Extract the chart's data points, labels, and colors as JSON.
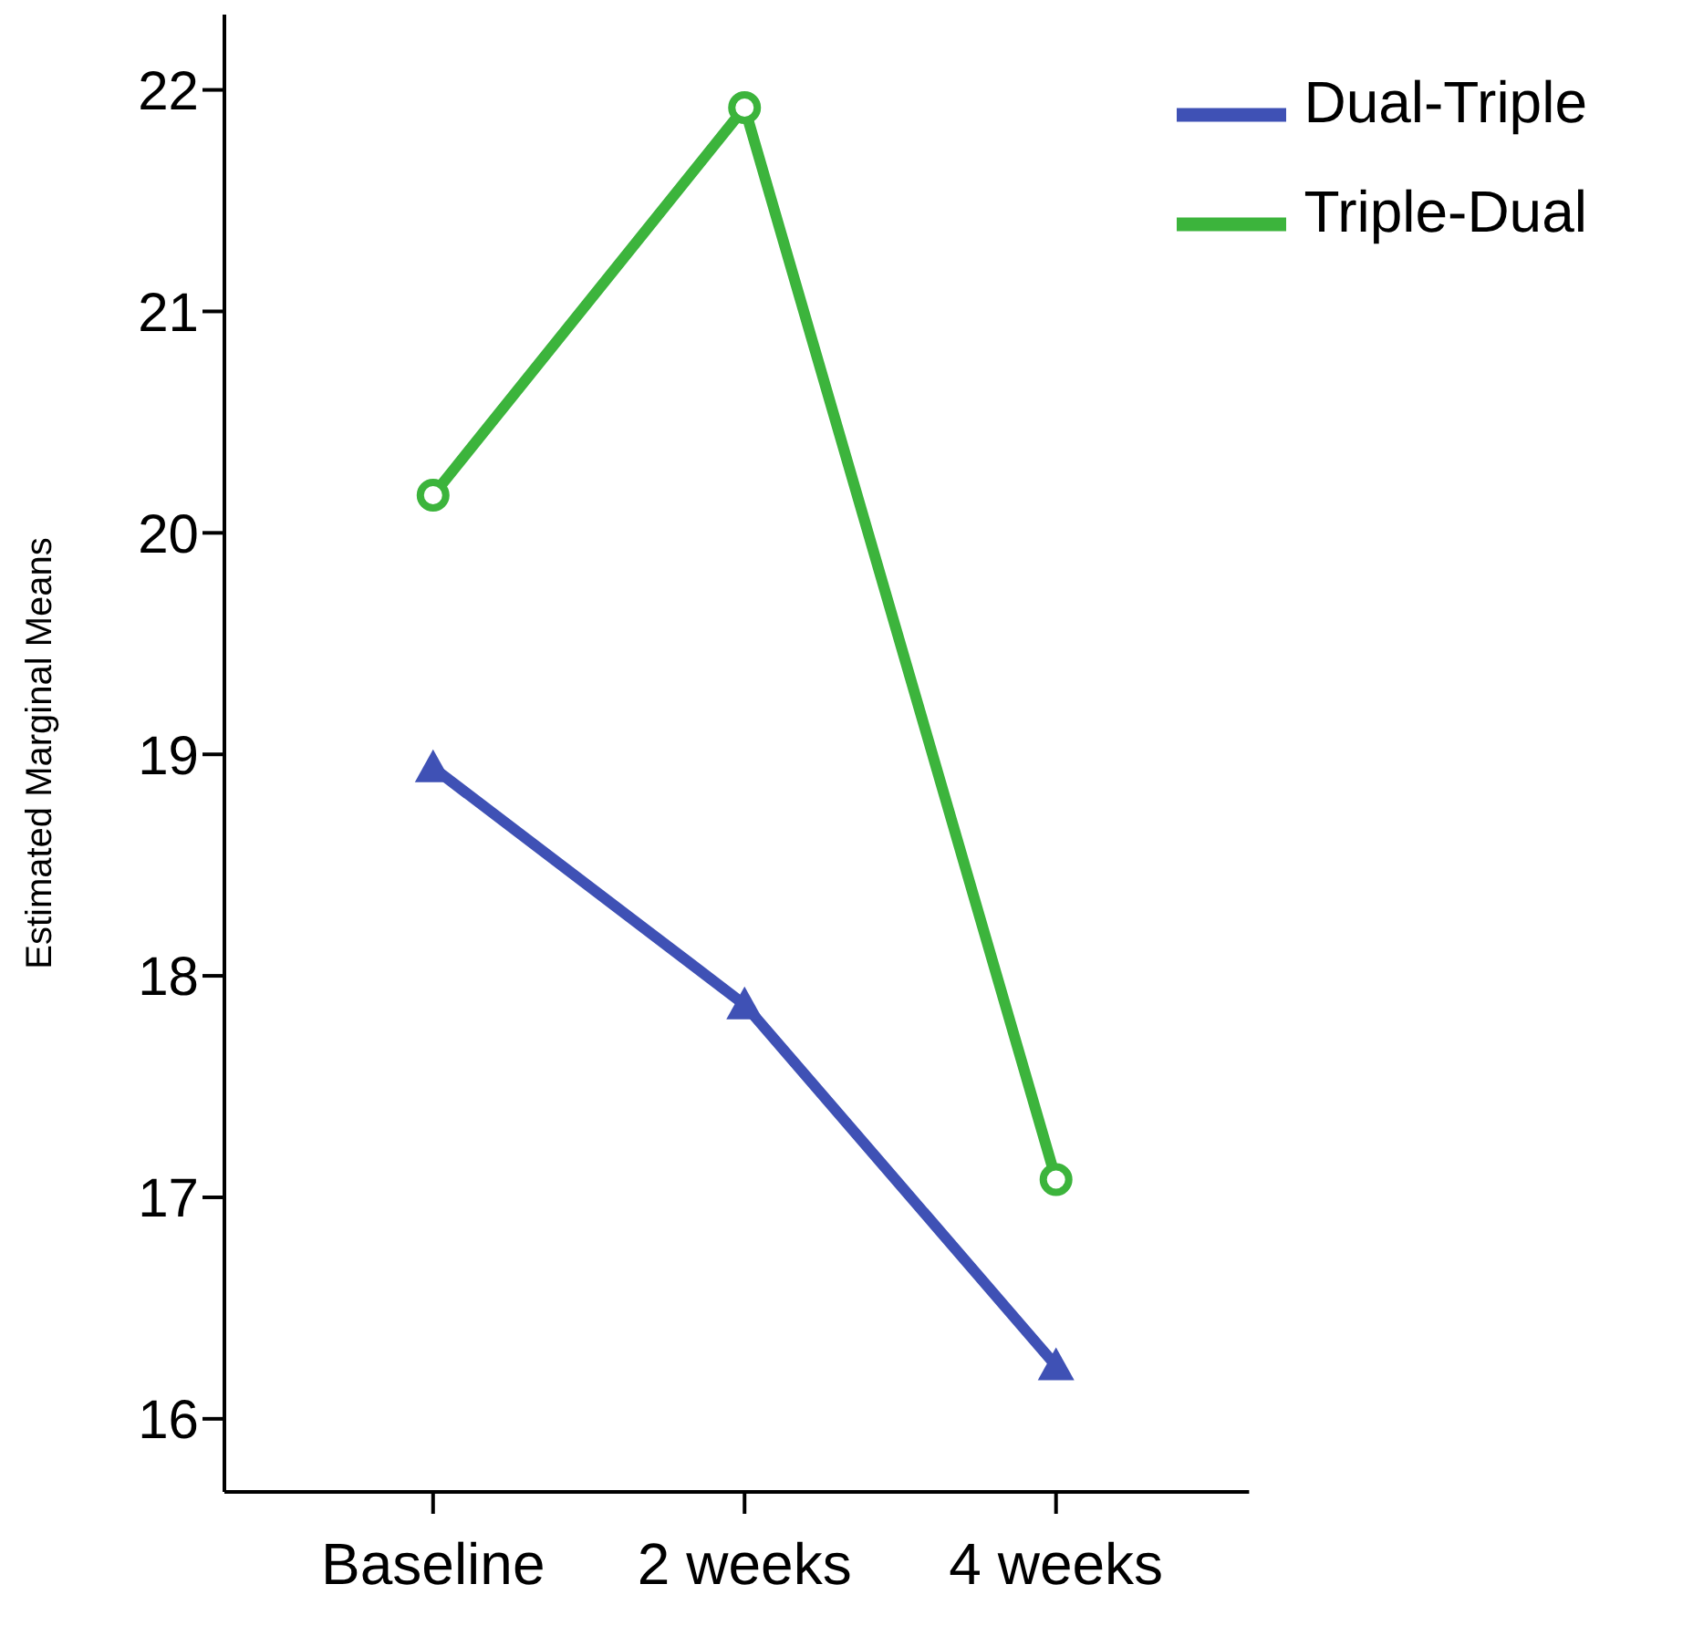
{
  "chart_data": {
    "type": "line",
    "ylabel": "Estimated Marginal Means",
    "categories": [
      "Baseline",
      "2 weeks",
      "4 weeks"
    ],
    "series": [
      {
        "name": "Dual-Triple",
        "color": "#3f51b5",
        "values": [
          18.94,
          17.87,
          16.24
        ],
        "marker": "triangle"
      },
      {
        "name": "Triple-Dual",
        "color": "#3cb43c",
        "values": [
          20.17,
          21.92,
          17.08
        ],
        "marker": "circle"
      }
    ],
    "ylim": [
      15.67,
      22.34
    ],
    "yticks": [
      16,
      17,
      18,
      19,
      20,
      21,
      22
    ],
    "grid": false,
    "legend": "top right"
  }
}
